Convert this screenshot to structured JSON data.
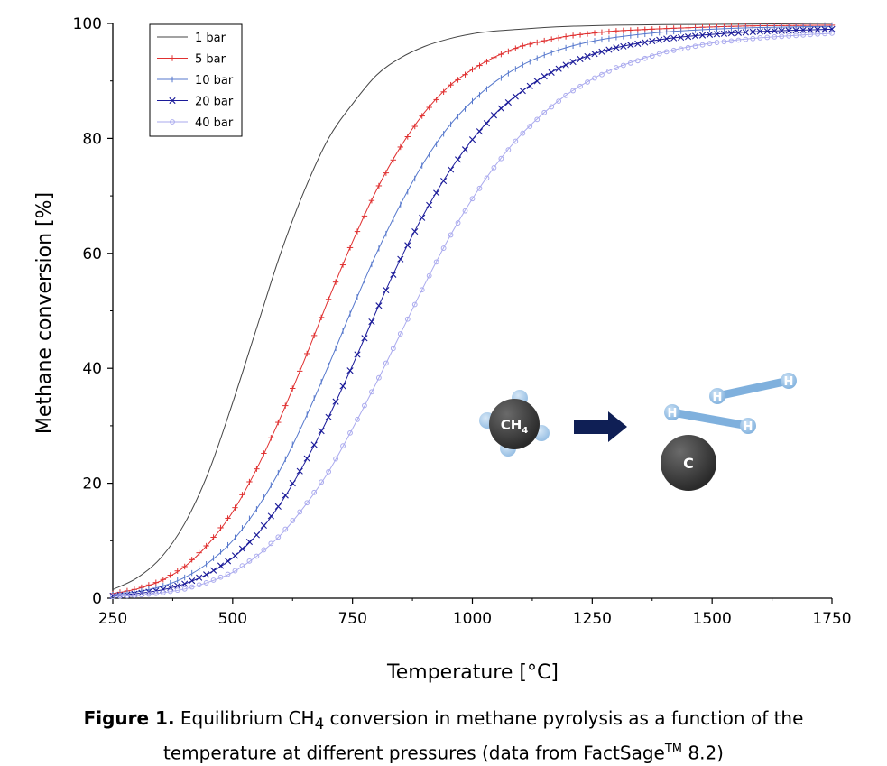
{
  "chart_data": {
    "type": "line",
    "xlabel": "Temperature [°C]",
    "ylabel": "Methane conversion [%]",
    "xlim": [
      250,
      1750
    ],
    "ylim": [
      0,
      100
    ],
    "xticks": [
      250,
      500,
      750,
      1000,
      1250,
      1500,
      1750
    ],
    "yticks": [
      0,
      20,
      40,
      60,
      80,
      100
    ],
    "legend_position": "top-left",
    "series": [
      {
        "name": "1 bar",
        "color": "#444444",
        "marker": "none",
        "x": [
          250,
          300,
          350,
          400,
          450,
          500,
          550,
          600,
          650,
          700,
          750,
          800,
          850,
          900,
          950,
          1000,
          1050,
          1100,
          1150,
          1200,
          1250,
          1300,
          1350,
          1400,
          1500,
          1600,
          1750
        ],
        "y": [
          1.5,
          3.5,
          7,
          13,
          22,
          34,
          47,
          60,
          71,
          80,
          86,
          91,
          94,
          96,
          97.3,
          98.2,
          98.7,
          99,
          99.3,
          99.5,
          99.6,
          99.7,
          99.75,
          99.8,
          99.85,
          99.9,
          100
        ]
      },
      {
        "name": "5 bar",
        "color": "#e03030",
        "marker": "plus",
        "x": [
          250,
          300,
          350,
          400,
          450,
          500,
          550,
          600,
          650,
          700,
          750,
          800,
          850,
          900,
          950,
          1000,
          1050,
          1100,
          1150,
          1200,
          1250,
          1300,
          1400,
          1500,
          1600,
          1750
        ],
        "y": [
          0.8,
          1.6,
          3,
          5.5,
          9.5,
          15,
          22.5,
          31.5,
          41.5,
          52,
          62,
          71,
          78.5,
          84.5,
          89,
          92,
          94.3,
          96,
          97,
          97.8,
          98.3,
          98.7,
          99.1,
          99.4,
          99.6,
          99.7
        ]
      },
      {
        "name": "10 bar",
        "color": "#5577cc",
        "marker": "vbar",
        "x": [
          250,
          300,
          350,
          400,
          450,
          500,
          550,
          600,
          650,
          700,
          750,
          800,
          850,
          900,
          950,
          1000,
          1050,
          1100,
          1150,
          1200,
          1250,
          1300,
          1400,
          1500,
          1600,
          1750
        ],
        "y": [
          0.6,
          1.1,
          2,
          3.6,
          6.2,
          10,
          15.5,
          22.5,
          31,
          40.5,
          50.5,
          60,
          68.5,
          76,
          82,
          86.5,
          90,
          92.6,
          94.5,
          95.9,
          96.9,
          97.6,
          98.5,
          99,
          99.3,
          99.5
        ]
      },
      {
        "name": "20 bar",
        "color": "#1a1a99",
        "marker": "x",
        "x": [
          250,
          300,
          350,
          400,
          450,
          500,
          550,
          600,
          650,
          700,
          750,
          800,
          850,
          900,
          950,
          1000,
          1050,
          1100,
          1150,
          1200,
          1250,
          1300,
          1400,
          1500,
          1600,
          1750
        ],
        "y": [
          0.4,
          0.8,
          1.4,
          2.5,
          4.3,
          7,
          11,
          16.5,
          23.5,
          31.5,
          40.5,
          50,
          59,
          67,
          74,
          79.8,
          84.5,
          88,
          90.8,
          93,
          94.6,
          95.8,
          97.3,
          98.1,
          98.6,
          99
        ]
      },
      {
        "name": "40 bar",
        "color": "#aaaaee",
        "marker": "circle",
        "x": [
          250,
          300,
          350,
          400,
          450,
          500,
          550,
          600,
          650,
          700,
          750,
          800,
          850,
          900,
          950,
          1000,
          1050,
          1100,
          1150,
          1200,
          1250,
          1300,
          1400,
          1500,
          1600,
          1750
        ],
        "y": [
          0.3,
          0.5,
          0.9,
          1.6,
          2.8,
          4.5,
          7.3,
          11,
          16,
          22,
          29.5,
          37.5,
          46,
          54.5,
          62.5,
          69.5,
          75.5,
          80.5,
          84.5,
          87.8,
          90.3,
          92.3,
          95,
          96.6,
          97.5,
          98.3
        ]
      }
    ]
  },
  "illustration": {
    "reactant_label": "CH",
    "reactant_subscript": "4",
    "product_carbon_label": "C",
    "hydrogen_label": "H",
    "arrow_color": "#0f1f55",
    "bond_color": "#7fb0dd",
    "atom_color": "#2a2a2a"
  },
  "caption": {
    "bold_prefix": "Figure 1.",
    "line1_a": " Equilibrium CH",
    "line1_sub": "4",
    "line1_b": " conversion in methane pyrolysis as a function of the",
    "line2_a": "temperature at different pressures (data from FactSage",
    "line2_sup": "TM",
    "line2_b": " 8.2)"
  }
}
